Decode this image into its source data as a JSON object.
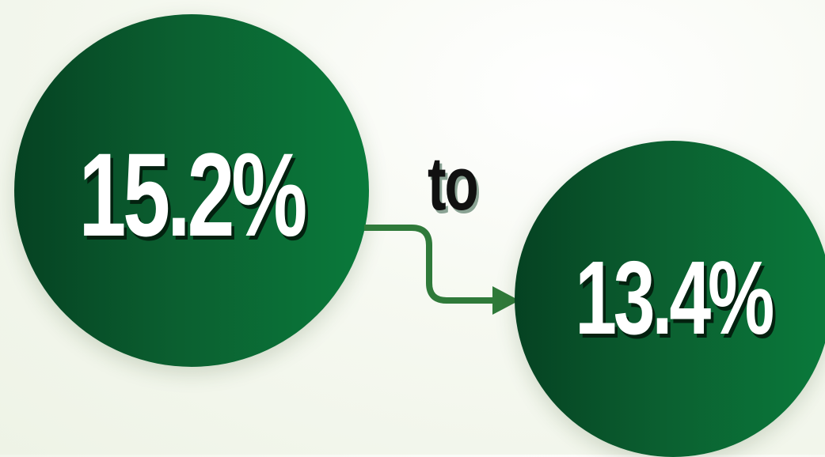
{
  "from_value": "15.2%",
  "connector_word": "to",
  "to_value": "13.4%",
  "colors": {
    "circle_dark": "#054222",
    "circle_light": "#0a7a3b",
    "arrow": "#2f7a3a",
    "value_text": "#ffffff",
    "connector_text": "#111111"
  },
  "icons": {
    "arrow": "elbow-arrow-right-icon"
  }
}
